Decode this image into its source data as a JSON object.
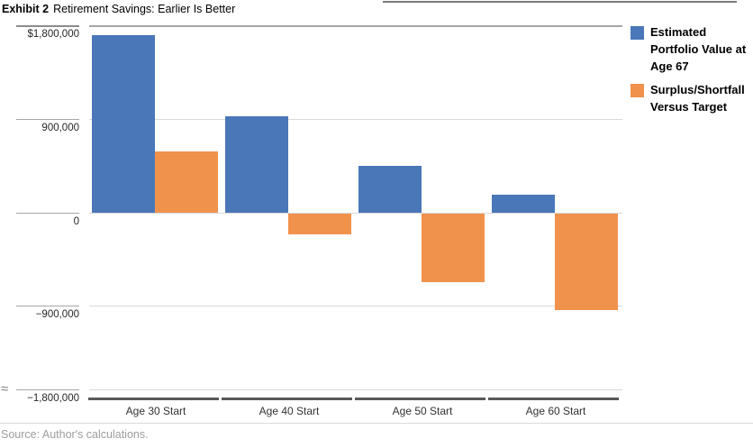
{
  "header": {
    "exhibit_label": "Exhibit 2",
    "title": "Retirement Savings: Earlier Is Better"
  },
  "chart_data": {
    "type": "bar",
    "categories": [
      "Age 30 Start",
      "Age 40 Start",
      "Age 50 Start",
      "Age 60 Start"
    ],
    "series": [
      {
        "name": "Estimated Portfolio Value at Age 67",
        "color": "#4A77B8",
        "values": [
          1710000,
          930000,
          450000,
          170000
        ]
      },
      {
        "name": "Surplus/Shortfall Versus Target",
        "color": "#F0924C",
        "values": [
          590000,
          -200000,
          -660000,
          -930000
        ]
      }
    ],
    "yticks": [
      {
        "label": "$1,800,000",
        "value": 1800000
      },
      {
        "label": "900,000",
        "value": 900000
      },
      {
        "label": "0",
        "value": 0
      },
      {
        "label": "−900,000",
        "value": -900000
      },
      {
        "label": "−1,800,000",
        "value": -1800000
      }
    ],
    "ylim": [
      -1800000,
      1800000
    ],
    "grid": "horizontal",
    "legend_position": "top-right",
    "axis_break_symbol": "≈"
  },
  "legend": {
    "items": [
      {
        "label": "Estimated Portfolio Value at Age 67",
        "color": "#4A77B8"
      },
      {
        "label": "Surplus/Shortfall Versus Target",
        "color": "#F0924C"
      }
    ]
  },
  "footer": {
    "source": "Source: Author's calculations."
  },
  "colors": {
    "bar_blue": "#4A77B8",
    "bar_orange": "#F0924C",
    "grid_light": "#d9d9d9",
    "grid_top": "#a6a6a6",
    "axis_dark": "#595959",
    "source_text": "#9e9e9e"
  }
}
